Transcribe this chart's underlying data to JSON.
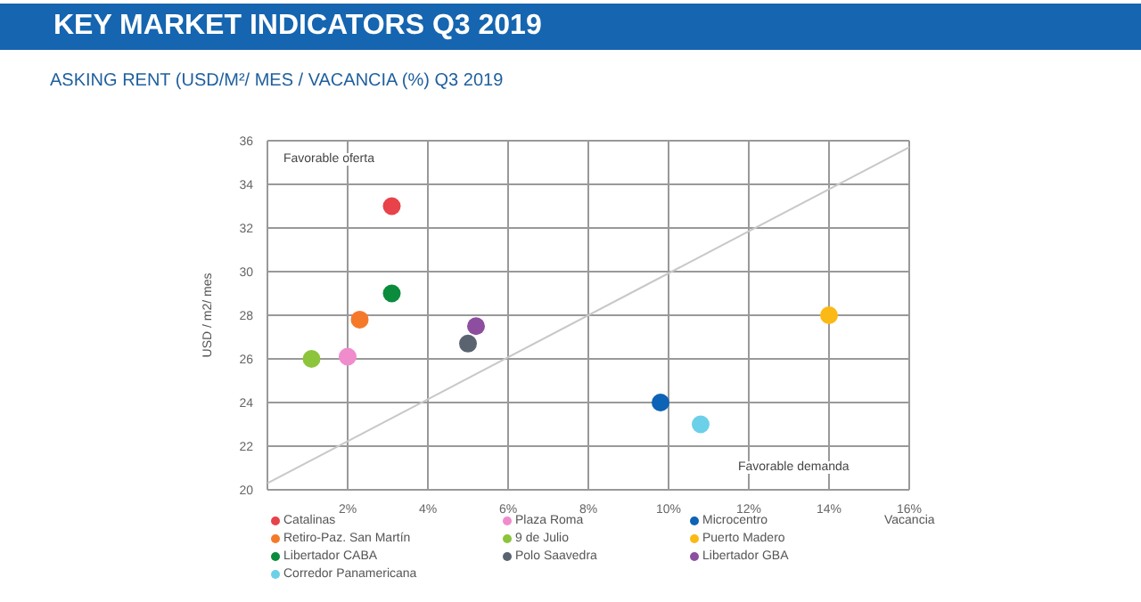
{
  "chart_data": {
    "type": "scatter",
    "title": "KEY MARKET INDICATORS Q3 2019",
    "subtitle": "ASKING RENT (USD/M²/ MES / VACANCIA (%) Q3 2019",
    "xlabel": "Vacancia",
    "ylabel": "USD / m2/ mes",
    "xlim": [
      0,
      16
    ],
    "xticks": [
      {
        "value": 0,
        "label": null
      },
      {
        "value": 2,
        "label": "2%"
      },
      {
        "value": 4,
        "label": "4%"
      },
      {
        "value": 6,
        "label": "6%"
      },
      {
        "value": 8,
        "label": "8%"
      },
      {
        "value": 10,
        "label": "10%"
      },
      {
        "value": 12,
        "label": "12%"
      },
      {
        "value": 14,
        "label": "14%"
      },
      {
        "value": 16,
        "label": "16%"
      }
    ],
    "ylim": [
      20,
      36
    ],
    "yticks": [
      20,
      22,
      24,
      26,
      28,
      30,
      32,
      34,
      36
    ],
    "grid": true,
    "legend": "bottom",
    "marker": "circle",
    "annotations": [
      "Favorable oferta",
      "Favorable demanda"
    ],
    "series": [
      {
        "name": "Catalinas",
        "color": "#e8424a",
        "x": [
          3.1
        ],
        "values": [
          33
        ]
      },
      {
        "name": "Plaza Roma",
        "color": "#f08ccc",
        "x": [
          2.0
        ],
        "values": [
          26.1
        ]
      },
      {
        "name": "Microcentro",
        "color": "#0d63b5",
        "x": [
          9.8
        ],
        "values": [
          24
        ]
      },
      {
        "name": "Retiro-Paz. San Martín",
        "color": "#f47a2a",
        "x": [
          2.3
        ],
        "values": [
          27.8
        ]
      },
      {
        "name": "9 de Julio",
        "color": "#8cc43c",
        "x": [
          1.1
        ],
        "values": [
          26
        ]
      },
      {
        "name": "Puerto Madero",
        "color": "#fbb915",
        "x": [
          14
        ],
        "values": [
          28
        ]
      },
      {
        "name": "Libertador CABA",
        "color": "#0a8c3c",
        "x": [
          3.1
        ],
        "values": [
          29
        ]
      },
      {
        "name": "Polo Saavedra",
        "color": "#5a6470",
        "x": [
          5.0
        ],
        "values": [
          26.7
        ]
      },
      {
        "name": "Libertador GBA",
        "color": "#8e4ea0",
        "x": [
          5.2
        ],
        "values": [
          27.5
        ]
      },
      {
        "name": "Corredor Panamericana",
        "color": "#6cd0e8",
        "x": [
          10.8
        ],
        "values": [
          23
        ]
      },
      {
        "type": "line",
        "marker": "none",
        "color": "#c8c8c8",
        "x": [
          0,
          16
        ],
        "values": [
          20.3,
          35.7
        ]
      }
    ]
  }
}
